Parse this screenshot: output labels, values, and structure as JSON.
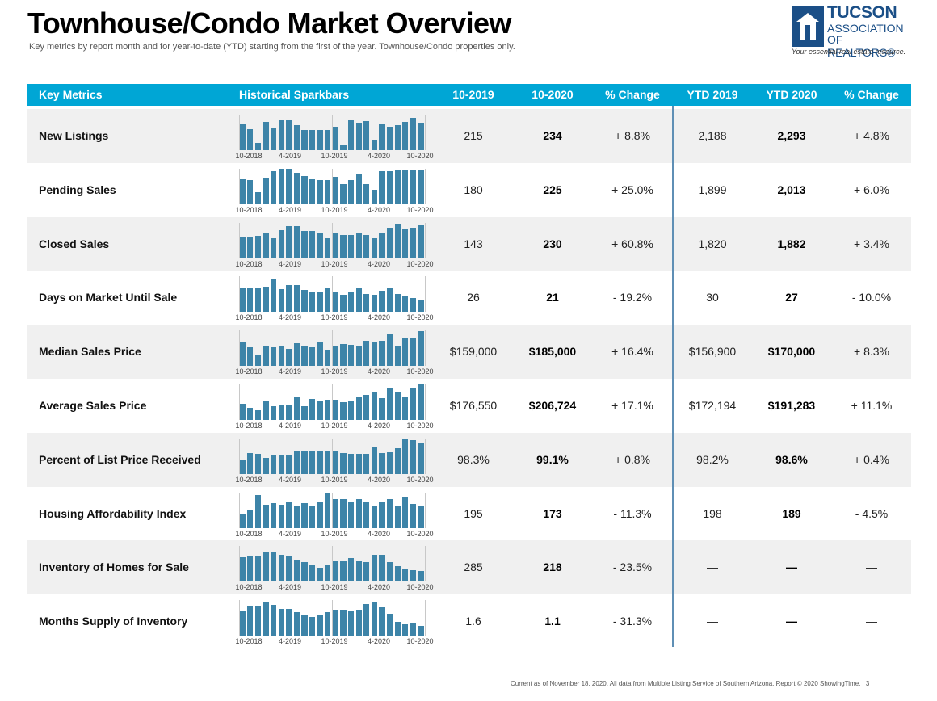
{
  "header": {
    "title": "Townhouse/Condo Market Overview",
    "subtitle": "Key metrics by report month and for year-to-date (YTD) starting from the first of the year. Townhouse/Condo properties only."
  },
  "logo": {
    "line1": "TUCSON",
    "line2": "ASSOCIATION",
    "line3": "OF REALTORS®",
    "tagline": "Your essential real estate resource."
  },
  "colors": {
    "header_bg": "#00a6d5",
    "bar": "#3d84a8",
    "divider": "#5f8fb5",
    "stripe": "#f0f0f0"
  },
  "table": {
    "columns": [
      "Key Metrics",
      "Historical Sparkbars",
      "10-2019",
      "10-2020",
      "% Change",
      "YTD 2019",
      "YTD 2020",
      "% Change"
    ],
    "spark_labels": [
      "10-2018",
      "4-2019",
      "10-2019",
      "4-2020",
      "10-2020"
    ],
    "rows": [
      {
        "metric": "New Listings",
        "m2019": "215",
        "m2020": "234",
        "m_change": "+ 8.8%",
        "ytd2019": "2,188",
        "ytd2020": "2,293",
        "ytd_change": "+ 4.8%",
        "spark": [
          0.72,
          0.58,
          0.2,
          0.8,
          0.62,
          0.86,
          0.83,
          0.7,
          0.56,
          0.56,
          0.56,
          0.56,
          0.65,
          0.15,
          0.83,
          0.78,
          0.82,
          0.3,
          0.74,
          0.66,
          0.71,
          0.8,
          0.9,
          0.78
        ]
      },
      {
        "metric": "Pending Sales",
        "m2019": "180",
        "m2020": "225",
        "m_change": "+ 25.0%",
        "ytd2019": "1,899",
        "ytd2020": "2,013",
        "ytd_change": "+ 6.0%",
        "spark": [
          0.7,
          0.67,
          0.33,
          0.72,
          0.93,
          1.0,
          1.0,
          0.88,
          0.79,
          0.69,
          0.67,
          0.67,
          0.77,
          0.56,
          0.67,
          0.86,
          0.56,
          0.4,
          0.93,
          0.93,
          0.97,
          0.97,
          0.97,
          0.97
        ]
      },
      {
        "metric": "Closed Sales",
        "m2019": "143",
        "m2020": "230",
        "m_change": "+ 60.8%",
        "ytd2019": "1,820",
        "ytd2020": "1,882",
        "ytd_change": "+ 3.4%",
        "spark": [
          0.6,
          0.6,
          0.62,
          0.7,
          0.57,
          0.79,
          0.91,
          0.89,
          0.76,
          0.76,
          0.7,
          0.57,
          0.7,
          0.64,
          0.64,
          0.7,
          0.64,
          0.57,
          0.7,
          0.85,
          0.97,
          0.83,
          0.85,
          0.93
        ]
      },
      {
        "metric": "Days on Market Until Sale",
        "m2019": "26",
        "m2020": "21",
        "m_change": "- 19.2%",
        "ytd2019": "30",
        "ytd2020": "27",
        "ytd_change": "- 10.0%",
        "spark": [
          0.7,
          0.66,
          0.66,
          0.72,
          0.95,
          0.64,
          0.77,
          0.77,
          0.62,
          0.55,
          0.55,
          0.67,
          0.55,
          0.48,
          0.57,
          0.68,
          0.52,
          0.48,
          0.61,
          0.68,
          0.52,
          0.45,
          0.39,
          0.32
        ]
      },
      {
        "metric": "Median Sales Price",
        "m2019": "$159,000",
        "m2020": "$185,000",
        "m_change": "+ 16.4%",
        "ytd2019": "$156,900",
        "ytd2020": "$170,000",
        "ytd_change": "+ 8.3%",
        "spark": [
          0.67,
          0.52,
          0.29,
          0.58,
          0.52,
          0.57,
          0.49,
          0.65,
          0.58,
          0.52,
          0.68,
          0.46,
          0.56,
          0.61,
          0.6,
          0.57,
          0.72,
          0.69,
          0.7,
          0.88,
          0.57,
          0.8,
          0.8,
          0.99
        ]
      },
      {
        "metric": "Average Sales Price",
        "m2019": "$176,550",
        "m2020": "$206,724",
        "m_change": "+ 17.1%",
        "ytd2019": "$172,194",
        "ytd2020": "$191,283",
        "ytd_change": "+ 11.1%",
        "spark": [
          0.45,
          0.35,
          0.27,
          0.52,
          0.38,
          0.4,
          0.4,
          0.65,
          0.38,
          0.6,
          0.54,
          0.57,
          0.57,
          0.5,
          0.55,
          0.66,
          0.7,
          0.79,
          0.62,
          0.9,
          0.79,
          0.65,
          0.89,
          0.99
        ]
      },
      {
        "metric": "Percent of List Price Received",
        "m2019": "98.3%",
        "m2020": "99.1%",
        "m_change": "+ 0.8%",
        "ytd2019": "98.2%",
        "ytd2020": "98.6%",
        "ytd_change": "+ 0.4%",
        "spark": [
          0.4,
          0.58,
          0.56,
          0.44,
          0.54,
          0.53,
          0.53,
          0.63,
          0.65,
          0.63,
          0.65,
          0.65,
          0.63,
          0.59,
          0.56,
          0.56,
          0.56,
          0.74,
          0.58,
          0.6,
          0.73,
          1.0,
          0.95,
          0.87
        ]
      },
      {
        "metric": "Housing Affordability Index",
        "m2019": "195",
        "m2020": "173",
        "m_change": "- 11.3%",
        "ytd2019": "198",
        "ytd2020": "189",
        "ytd_change": "- 4.5%",
        "spark": [
          0.37,
          0.51,
          0.93,
          0.64,
          0.7,
          0.64,
          0.74,
          0.62,
          0.7,
          0.6,
          0.74,
          1.0,
          0.82,
          0.82,
          0.71,
          0.82,
          0.71,
          0.62,
          0.74,
          0.82,
          0.62,
          0.87,
          0.67,
          0.62
        ]
      },
      {
        "metric": "Inventory of Homes for Sale",
        "m2019": "285",
        "m2020": "218",
        "m_change": "- 23.5%",
        "ytd2019": "—",
        "ytd2020": "—",
        "ytd_change": "—",
        "spark": [
          0.7,
          0.72,
          0.74,
          0.86,
          0.82,
          0.77,
          0.72,
          0.63,
          0.55,
          0.49,
          0.4,
          0.49,
          0.58,
          0.58,
          0.67,
          0.58,
          0.55,
          0.77,
          0.77,
          0.55,
          0.45,
          0.35,
          0.32,
          0.3
        ]
      },
      {
        "metric": "Months Supply of Inventory",
        "m2019": "1.6",
        "m2020": "1.1",
        "m_change": "- 31.3%",
        "ytd2019": "—",
        "ytd2020": "—",
        "ytd_change": "—",
        "spark": [
          0.72,
          0.84,
          0.84,
          0.95,
          0.86,
          0.76,
          0.76,
          0.67,
          0.58,
          0.52,
          0.6,
          0.67,
          0.74,
          0.74,
          0.69,
          0.74,
          0.88,
          0.95,
          0.79,
          0.62,
          0.39,
          0.33,
          0.36,
          0.27
        ]
      }
    ]
  },
  "footer": "Current as of November 18, 2020. All data from Multiple Listing Service of Southern Arizona. Report © 2020 ShowingTime.  |  3"
}
